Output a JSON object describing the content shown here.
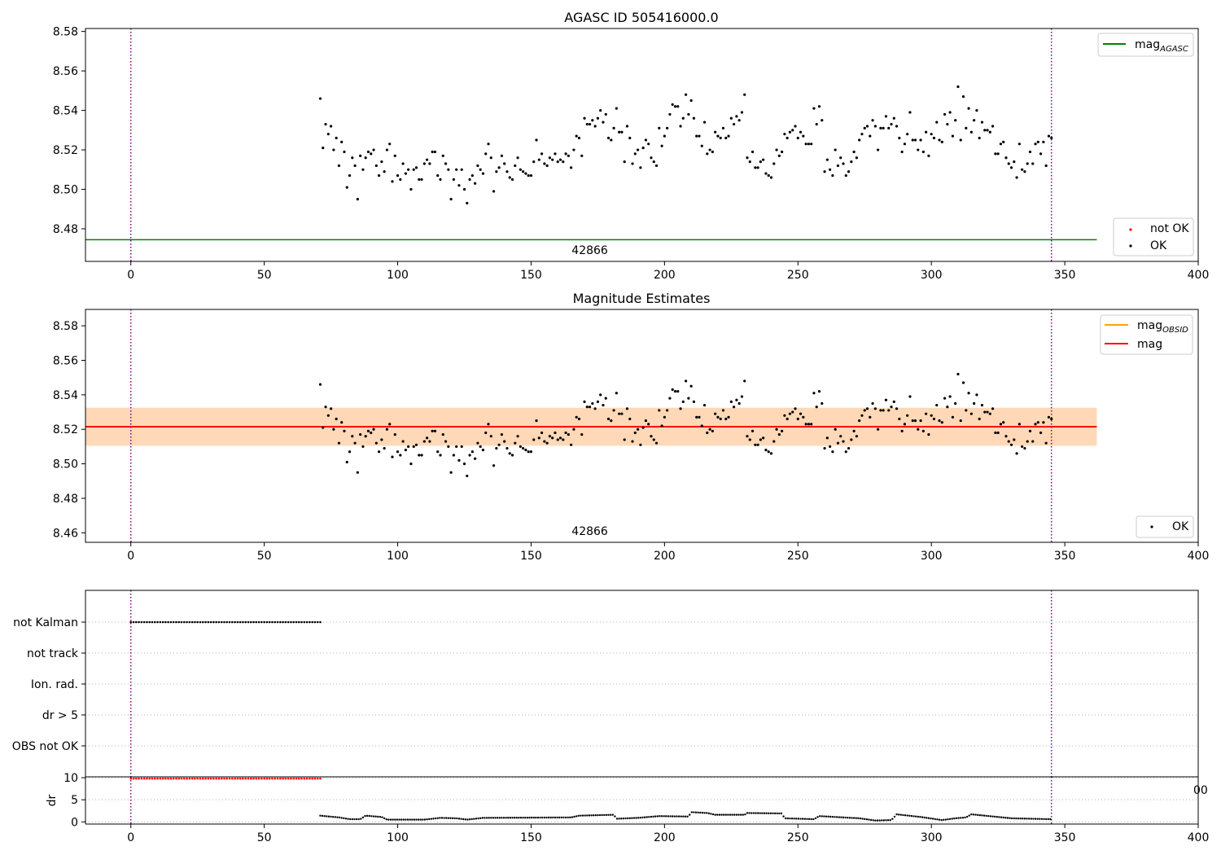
{
  "chart_data": [
    {
      "type": "scatter",
      "title": "AGASC ID 505416000.0",
      "xlabel": "",
      "ylabel": "",
      "xlim": [
        -17,
        400
      ],
      "ylim": [
        8.4635,
        8.5815
      ],
      "xticks": [
        0,
        50,
        100,
        150,
        200,
        250,
        300,
        350,
        400
      ],
      "yticks": [
        8.48,
        8.5,
        8.52,
        8.54,
        8.56,
        8.58
      ],
      "ytick_labels": [
        "8.48",
        "8.50",
        "8.52",
        "8.54",
        "8.56",
        "8.58"
      ],
      "obsid_label": "42866",
      "obsid_label_x": 172,
      "vlines": [
        0,
        345
      ],
      "mag_agasc": 8.4745,
      "mag_agasc_xrange": [
        -17,
        362
      ],
      "legend_top": [
        {
          "label": "mag",
          "sub": "AGASC",
          "color": "#008000"
        }
      ],
      "legend_bottom": [
        {
          "label": "not OK",
          "color": "#ff0000"
        },
        {
          "label": "OK",
          "color": "#000000"
        }
      ]
    },
    {
      "type": "scatter",
      "title": "Magnitude Estimates",
      "xlabel": "",
      "ylabel": "",
      "xlim": [
        -17,
        400
      ],
      "ylim": [
        8.4545,
        8.5895
      ],
      "xticks": [
        0,
        50,
        100,
        150,
        200,
        250,
        300,
        350,
        400
      ],
      "yticks": [
        8.46,
        8.48,
        8.5,
        8.52,
        8.54,
        8.56,
        8.58
      ],
      "ytick_labels": [
        "8.46",
        "8.48",
        "8.50",
        "8.52",
        "8.54",
        "8.56",
        "8.58"
      ],
      "obsid_label": "42866",
      "obsid_label_x": 172,
      "vlines": [
        0,
        345
      ],
      "mag": 8.5215,
      "mag_xrange": [
        -17,
        362
      ],
      "mag_obsid_band": [
        8.5105,
        8.5325
      ],
      "mag_band": [
        8.5105,
        8.5325
      ],
      "legend_top": [
        {
          "label": "mag",
          "sub": "OBSID",
          "color": "#ffa500"
        },
        {
          "label": "mag",
          "sub": "",
          "color": "#ff0000"
        }
      ],
      "legend_bottom": [
        {
          "label": "OK",
          "color": "#000000"
        }
      ]
    },
    {
      "type": "scatter",
      "title": "",
      "xlim": [
        -17,
        400
      ],
      "categories": [
        "not Kalman",
        "not track",
        "Ion. rad.",
        "dr > 5",
        "OBS not OK"
      ],
      "flag_points": {
        "not Kalman": [
          0,
          71
        ],
        "not track": null,
        "Ion. rad.": null,
        "dr > 5": null,
        "OBS not OK": null
      },
      "vlines": [
        0,
        345
      ]
    },
    {
      "type": "scatter",
      "title": "",
      "ylabel": "dr",
      "xlim": [
        -17,
        400
      ],
      "ylim": [
        -0.5,
        10.2
      ],
      "xticks": [
        0,
        50,
        100,
        150,
        200,
        250,
        300,
        350,
        400
      ],
      "yticks": [
        0,
        5,
        10
      ],
      "ytick_labels": [
        "0",
        "5",
        "10"
      ],
      "vlines": [
        0,
        345
      ],
      "dr_rejected": {
        "x_range": [
          0,
          71
        ],
        "value": 9.8,
        "color": "#ff0000"
      },
      "dr_ok": {
        "x_range": [
          71,
          345
        ],
        "color": "#000000"
      },
      "overflow_label": "00"
    }
  ],
  "mag_series": [
    {
      "t": 71,
      "mag": 8.546
    },
    {
      "t": 72,
      "mag": 8.521
    },
    {
      "t": 73,
      "mag": 8.533
    },
    {
      "t": 74,
      "mag": 8.528
    },
    {
      "t": 75,
      "mag": 8.532
    },
    {
      "t": 76,
      "mag": 8.52
    },
    {
      "t": 77,
      "mag": 8.526
    },
    {
      "t": 78,
      "mag": 8.512
    },
    {
      "t": 79,
      "mag": 8.524
    },
    {
      "t": 80,
      "mag": 8.519
    },
    {
      "t": 81,
      "mag": 8.501
    },
    {
      "t": 82,
      "mag": 8.507
    },
    {
      "t": 83,
      "mag": 8.516
    },
    {
      "t": 84,
      "mag": 8.512
    },
    {
      "t": 85,
      "mag": 8.495
    },
    {
      "t": 86,
      "mag": 8.517
    },
    {
      "t": 87,
      "mag": 8.51
    },
    {
      "t": 88,
      "mag": 8.516
    },
    {
      "t": 89,
      "mag": 8.519
    },
    {
      "t": 90,
      "mag": 8.518
    },
    {
      "t": 91,
      "mag": 8.52
    },
    {
      "t": 92,
      "mag": 8.512
    },
    {
      "t": 93,
      "mag": 8.507
    },
    {
      "t": 94,
      "mag": 8.514
    },
    {
      "t": 95,
      "mag": 8.509
    },
    {
      "t": 96,
      "mag": 8.52
    },
    {
      "t": 97,
      "mag": 8.523
    },
    {
      "t": 98,
      "mag": 8.504
    },
    {
      "t": 99,
      "mag": 8.517
    },
    {
      "t": 100,
      "mag": 8.507
    },
    {
      "t": 101,
      "mag": 8.505
    },
    {
      "t": 102,
      "mag": 8.513
    },
    {
      "t": 103,
      "mag": 8.508
    },
    {
      "t": 104,
      "mag": 8.51
    },
    {
      "t": 105,
      "mag": 8.5
    },
    {
      "t": 106,
      "mag": 8.51
    },
    {
      "t": 107,
      "mag": 8.511
    },
    {
      "t": 108,
      "mag": 8.505
    },
    {
      "t": 109,
      "mag": 8.505
    },
    {
      "t": 110,
      "mag": 8.513
    },
    {
      "t": 111,
      "mag": 8.515
    },
    {
      "t": 112,
      "mag": 8.513
    },
    {
      "t": 113,
      "mag": 8.519
    },
    {
      "t": 114,
      "mag": 8.519
    },
    {
      "t": 115,
      "mag": 8.507
    },
    {
      "t": 116,
      "mag": 8.505
    },
    {
      "t": 117,
      "mag": 8.517
    },
    {
      "t": 118,
      "mag": 8.513
    },
    {
      "t": 119,
      "mag": 8.51
    },
    {
      "t": 120,
      "mag": 8.495
    },
    {
      "t": 121,
      "mag": 8.505
    },
    {
      "t": 122,
      "mag": 8.51
    },
    {
      "t": 123,
      "mag": 8.502
    },
    {
      "t": 124,
      "mag": 8.51
    },
    {
      "t": 125,
      "mag": 8.5
    },
    {
      "t": 126,
      "mag": 8.493
    },
    {
      "t": 127,
      "mag": 8.505
    },
    {
      "t": 128,
      "mag": 8.507
    },
    {
      "t": 129,
      "mag": 8.503
    },
    {
      "t": 130,
      "mag": 8.512
    },
    {
      "t": 131,
      "mag": 8.51
    },
    {
      "t": 132,
      "mag": 8.508
    },
    {
      "t": 133,
      "mag": 8.518
    },
    {
      "t": 134,
      "mag": 8.523
    },
    {
      "t": 135,
      "mag": 8.516
    },
    {
      "t": 136,
      "mag": 8.499
    },
    {
      "t": 137,
      "mag": 8.509
    },
    {
      "t": 138,
      "mag": 8.511
    },
    {
      "t": 139,
      "mag": 8.517
    },
    {
      "t": 140,
      "mag": 8.513
    },
    {
      "t": 141,
      "mag": 8.509
    },
    {
      "t": 142,
      "mag": 8.506
    },
    {
      "t": 143,
      "mag": 8.505
    },
    {
      "t": 144,
      "mag": 8.512
    },
    {
      "t": 145,
      "mag": 8.516
    },
    {
      "t": 146,
      "mag": 8.51
    },
    {
      "t": 147,
      "mag": 8.509
    },
    {
      "t": 148,
      "mag": 8.508
    },
    {
      "t": 149,
      "mag": 8.507
    },
    {
      "t": 150,
      "mag": 8.507
    },
    {
      "t": 151,
      "mag": 8.514
    },
    {
      "t": 152,
      "mag": 8.525
    },
    {
      "t": 153,
      "mag": 8.515
    },
    {
      "t": 154,
      "mag": 8.518
    },
    {
      "t": 155,
      "mag": 8.513
    },
    {
      "t": 156,
      "mag": 8.512
    },
    {
      "t": 157,
      "mag": 8.516
    },
    {
      "t": 158,
      "mag": 8.515
    },
    {
      "t": 159,
      "mag": 8.518
    },
    {
      "t": 160,
      "mag": 8.514
    },
    {
      "t": 161,
      "mag": 8.515
    },
    {
      "t": 162,
      "mag": 8.514
    },
    {
      "t": 163,
      "mag": 8.518
    },
    {
      "t": 164,
      "mag": 8.517
    },
    {
      "t": 165,
      "mag": 8.511
    },
    {
      "t": 166,
      "mag": 8.52
    },
    {
      "t": 167,
      "mag": 8.527
    },
    {
      "t": 168,
      "mag": 8.526
    },
    {
      "t": 169,
      "mag": 8.517
    },
    {
      "t": 170,
      "mag": 8.536
    },
    {
      "t": 171,
      "mag": 8.533
    },
    {
      "t": 172,
      "mag": 8.533
    },
    {
      "t": 173,
      "mag": 8.535
    },
    {
      "t": 174,
      "mag": 8.532
    },
    {
      "t": 175,
      "mag": 8.536
    },
    {
      "t": 176,
      "mag": 8.54
    },
    {
      "t": 177,
      "mag": 8.534
    },
    {
      "t": 178,
      "mag": 8.538
    },
    {
      "t": 179,
      "mag": 8.526
    },
    {
      "t": 180,
      "mag": 8.525
    },
    {
      "t": 181,
      "mag": 8.531
    },
    {
      "t": 182,
      "mag": 8.541
    },
    {
      "t": 183,
      "mag": 8.529
    },
    {
      "t": 184,
      "mag": 8.529
    },
    {
      "t": 185,
      "mag": 8.514
    },
    {
      "t": 186,
      "mag": 8.532
    },
    {
      "t": 187,
      "mag": 8.526
    },
    {
      "t": 188,
      "mag": 8.513
    },
    {
      "t": 189,
      "mag": 8.518
    },
    {
      "t": 190,
      "mag": 8.52
    },
    {
      "t": 191,
      "mag": 8.511
    },
    {
      "t": 192,
      "mag": 8.521
    },
    {
      "t": 193,
      "mag": 8.525
    },
    {
      "t": 194,
      "mag": 8.523
    },
    {
      "t": 195,
      "mag": 8.516
    },
    {
      "t": 196,
      "mag": 8.514
    },
    {
      "t": 197,
      "mag": 8.512
    },
    {
      "t": 198,
      "mag": 8.531
    },
    {
      "t": 199,
      "mag": 8.522
    },
    {
      "t": 200,
      "mag": 8.527
    },
    {
      "t": 201,
      "mag": 8.531
    },
    {
      "t": 202,
      "mag": 8.538
    },
    {
      "t": 203,
      "mag": 8.543
    },
    {
      "t": 204,
      "mag": 8.542
    },
    {
      "t": 205,
      "mag": 8.542
    },
    {
      "t": 206,
      "mag": 8.532
    },
    {
      "t": 207,
      "mag": 8.536
    },
    {
      "t": 208,
      "mag": 8.548
    },
    {
      "t": 209,
      "mag": 8.538
    },
    {
      "t": 210,
      "mag": 8.545
    },
    {
      "t": 211,
      "mag": 8.536
    },
    {
      "t": 212,
      "mag": 8.527
    },
    {
      "t": 213,
      "mag": 8.527
    },
    {
      "t": 214,
      "mag": 8.522
    },
    {
      "t": 215,
      "mag": 8.534
    },
    {
      "t": 216,
      "mag": 8.518
    },
    {
      "t": 217,
      "mag": 8.52
    },
    {
      "t": 218,
      "mag": 8.519
    },
    {
      "t": 219,
      "mag": 8.529
    },
    {
      "t": 220,
      "mag": 8.527
    },
    {
      "t": 221,
      "mag": 8.526
    },
    {
      "t": 222,
      "mag": 8.531
    },
    {
      "t": 223,
      "mag": 8.526
    },
    {
      "t": 224,
      "mag": 8.527
    },
    {
      "t": 225,
      "mag": 8.536
    },
    {
      "t": 226,
      "mag": 8.533
    },
    {
      "t": 227,
      "mag": 8.537
    },
    {
      "t": 228,
      "mag": 8.535
    },
    {
      "t": 229,
      "mag": 8.539
    },
    {
      "t": 230,
      "mag": 8.548
    },
    {
      "t": 231,
      "mag": 8.516
    },
    {
      "t": 232,
      "mag": 8.514
    },
    {
      "t": 233,
      "mag": 8.519
    },
    {
      "t": 234,
      "mag": 8.511
    },
    {
      "t": 235,
      "mag": 8.511
    },
    {
      "t": 236,
      "mag": 8.514
    },
    {
      "t": 237,
      "mag": 8.515
    },
    {
      "t": 238,
      "mag": 8.508
    },
    {
      "t": 239,
      "mag": 8.507
    },
    {
      "t": 240,
      "mag": 8.506
    },
    {
      "t": 241,
      "mag": 8.513
    },
    {
      "t": 242,
      "mag": 8.52
    },
    {
      "t": 243,
      "mag": 8.517
    },
    {
      "t": 244,
      "mag": 8.519
    },
    {
      "t": 245,
      "mag": 8.528
    },
    {
      "t": 246,
      "mag": 8.526
    },
    {
      "t": 247,
      "mag": 8.529
    },
    {
      "t": 248,
      "mag": 8.53
    },
    {
      "t": 249,
      "mag": 8.532
    },
    {
      "t": 250,
      "mag": 8.526
    },
    {
      "t": 251,
      "mag": 8.529
    },
    {
      "t": 252,
      "mag": 8.527
    },
    {
      "t": 253,
      "mag": 8.523
    },
    {
      "t": 254,
      "mag": 8.523
    },
    {
      "t": 255,
      "mag": 8.523
    },
    {
      "t": 256,
      "mag": 8.541
    },
    {
      "t": 257,
      "mag": 8.533
    },
    {
      "t": 258,
      "mag": 8.542
    },
    {
      "t": 259,
      "mag": 8.535
    },
    {
      "t": 260,
      "mag": 8.509
    },
    {
      "t": 261,
      "mag": 8.515
    },
    {
      "t": 262,
      "mag": 8.51
    },
    {
      "t": 263,
      "mag": 8.507
    },
    {
      "t": 264,
      "mag": 8.52
    },
    {
      "t": 265,
      "mag": 8.512
    },
    {
      "t": 266,
      "mag": 8.516
    },
    {
      "t": 267,
      "mag": 8.513
    },
    {
      "t": 268,
      "mag": 8.507
    },
    {
      "t": 269,
      "mag": 8.509
    },
    {
      "t": 270,
      "mag": 8.514
    },
    {
      "t": 271,
      "mag": 8.519
    },
    {
      "t": 272,
      "mag": 8.516
    },
    {
      "t": 273,
      "mag": 8.525
    },
    {
      "t": 274,
      "mag": 8.528
    },
    {
      "t": 275,
      "mag": 8.531
    },
    {
      "t": 276,
      "mag": 8.532
    },
    {
      "t": 277,
      "mag": 8.527
    },
    {
      "t": 278,
      "mag": 8.535
    },
    {
      "t": 279,
      "mag": 8.532
    },
    {
      "t": 280,
      "mag": 8.52
    },
    {
      "t": 281,
      "mag": 8.531
    },
    {
      "t": 282,
      "mag": 8.531
    },
    {
      "t": 283,
      "mag": 8.537
    },
    {
      "t": 284,
      "mag": 8.531
    },
    {
      "t": 285,
      "mag": 8.533
    },
    {
      "t": 286,
      "mag": 8.536
    },
    {
      "t": 287,
      "mag": 8.532
    },
    {
      "t": 288,
      "mag": 8.526
    },
    {
      "t": 289,
      "mag": 8.519
    },
    {
      "t": 290,
      "mag": 8.523
    },
    {
      "t": 291,
      "mag": 8.528
    },
    {
      "t": 292,
      "mag": 8.539
    },
    {
      "t": 293,
      "mag": 8.525
    },
    {
      "t": 294,
      "mag": 8.525
    },
    {
      "t": 295,
      "mag": 8.52
    },
    {
      "t": 296,
      "mag": 8.525
    },
    {
      "t": 297,
      "mag": 8.519
    },
    {
      "t": 298,
      "mag": 8.529
    },
    {
      "t": 299,
      "mag": 8.517
    },
    {
      "t": 300,
      "mag": 8.528
    },
    {
      "t": 301,
      "mag": 8.526
    },
    {
      "t": 302,
      "mag": 8.534
    },
    {
      "t": 303,
      "mag": 8.525
    },
    {
      "t": 304,
      "mag": 8.524
    },
    {
      "t": 305,
      "mag": 8.538
    },
    {
      "t": 306,
      "mag": 8.533
    },
    {
      "t": 307,
      "mag": 8.539
    },
    {
      "t": 308,
      "mag": 8.527
    },
    {
      "t": 309,
      "mag": 8.535
    },
    {
      "t": 310,
      "mag": 8.552
    },
    {
      "t": 311,
      "mag": 8.525
    },
    {
      "t": 312,
      "mag": 8.547
    },
    {
      "t": 313,
      "mag": 8.531
    },
    {
      "t": 314,
      "mag": 8.541
    },
    {
      "t": 315,
      "mag": 8.529
    },
    {
      "t": 316,
      "mag": 8.535
    },
    {
      "t": 317,
      "mag": 8.54
    },
    {
      "t": 318,
      "mag": 8.526
    },
    {
      "t": 319,
      "mag": 8.534
    },
    {
      "t": 320,
      "mag": 8.53
    },
    {
      "t": 321,
      "mag": 8.53
    },
    {
      "t": 322,
      "mag": 8.529
    },
    {
      "t": 323,
      "mag": 8.532
    },
    {
      "t": 324,
      "mag": 8.518
    },
    {
      "t": 325,
      "mag": 8.518
    },
    {
      "t": 326,
      "mag": 8.523
    },
    {
      "t": 327,
      "mag": 8.524
    },
    {
      "t": 328,
      "mag": 8.516
    },
    {
      "t": 329,
      "mag": 8.513
    },
    {
      "t": 330,
      "mag": 8.511
    },
    {
      "t": 331,
      "mag": 8.514
    },
    {
      "t": 332,
      "mag": 8.506
    },
    {
      "t": 333,
      "mag": 8.523
    },
    {
      "t": 334,
      "mag": 8.51
    },
    {
      "t": 335,
      "mag": 8.509
    },
    {
      "t": 336,
      "mag": 8.513
    },
    {
      "t": 337,
      "mag": 8.519
    },
    {
      "t": 338,
      "mag": 8.513
    },
    {
      "t": 339,
      "mag": 8.523
    },
    {
      "t": 340,
      "mag": 8.524
    },
    {
      "t": 341,
      "mag": 8.518
    },
    {
      "t": 342,
      "mag": 8.524
    },
    {
      "t": 343,
      "mag": 8.512
    },
    {
      "t": 344,
      "mag": 8.527
    },
    {
      "t": 345,
      "mag": 8.526
    }
  ],
  "dr_profile": [
    {
      "t": 71,
      "dr": 1.4
    },
    {
      "t": 78,
      "dr": 1.0
    },
    {
      "t": 82,
      "dr": 0.6
    },
    {
      "t": 86,
      "dr": 0.6
    },
    {
      "t": 88,
      "dr": 1.4
    },
    {
      "t": 94,
      "dr": 1.1
    },
    {
      "t": 96,
      "dr": 0.5
    },
    {
      "t": 110,
      "dr": 0.5
    },
    {
      "t": 116,
      "dr": 0.9
    },
    {
      "t": 122,
      "dr": 0.8
    },
    {
      "t": 126,
      "dr": 0.5
    },
    {
      "t": 132,
      "dr": 0.9
    },
    {
      "t": 165,
      "dr": 1.0
    },
    {
      "t": 168,
      "dr": 1.4
    },
    {
      "t": 181,
      "dr": 1.6
    },
    {
      "t": 182,
      "dr": 0.7
    },
    {
      "t": 190,
      "dr": 0.9
    },
    {
      "t": 198,
      "dr": 1.3
    },
    {
      "t": 209,
      "dr": 1.2
    },
    {
      "t": 210,
      "dr": 2.2
    },
    {
      "t": 216,
      "dr": 2.0
    },
    {
      "t": 219,
      "dr": 1.6
    },
    {
      "t": 230,
      "dr": 1.6
    },
    {
      "t": 231,
      "dr": 2.0
    },
    {
      "t": 244,
      "dr": 1.9
    },
    {
      "t": 245,
      "dr": 0.8
    },
    {
      "t": 256,
      "dr": 0.6
    },
    {
      "t": 258,
      "dr": 1.3
    },
    {
      "t": 273,
      "dr": 0.8
    },
    {
      "t": 279,
      "dr": 0.3
    },
    {
      "t": 285,
      "dr": 0.4
    },
    {
      "t": 287,
      "dr": 1.7
    },
    {
      "t": 296,
      "dr": 1.1
    },
    {
      "t": 304,
      "dr": 0.4
    },
    {
      "t": 309,
      "dr": 0.8
    },
    {
      "t": 313,
      "dr": 1.0
    },
    {
      "t": 315,
      "dr": 1.7
    },
    {
      "t": 330,
      "dr": 0.8
    },
    {
      "t": 345,
      "dr": 0.6
    }
  ]
}
